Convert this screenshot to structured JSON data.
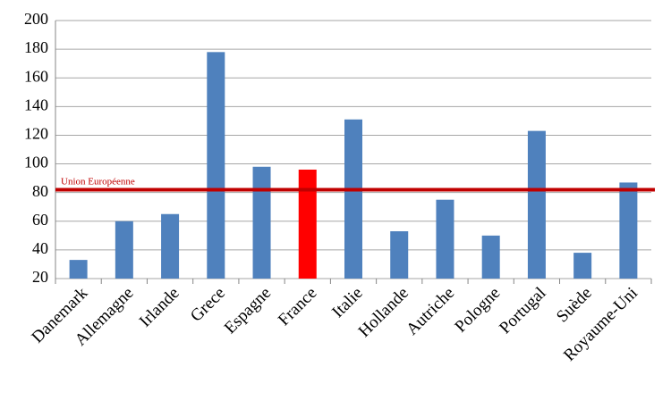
{
  "chart_data": {
    "type": "bar",
    "categories": [
      "Danemark",
      "Allemagne",
      "Irlande",
      "Grece",
      "Espagne",
      "France",
      "Italie",
      "Hollande",
      "Autriche",
      "Pologne",
      "Portugal",
      "Suède",
      "Royaume-Uni"
    ],
    "values": [
      33,
      60,
      65,
      178,
      98,
      96,
      131,
      53,
      75,
      50,
      123,
      38,
      87
    ],
    "colors": [
      "#4f81bd",
      "#4f81bd",
      "#4f81bd",
      "#4f81bd",
      "#4f81bd",
      "#ff0000",
      "#4f81bd",
      "#4f81bd",
      "#4f81bd",
      "#4f81bd",
      "#4f81bd",
      "#4f81bd",
      "#4f81bd"
    ],
    "ylim": [
      20,
      200
    ],
    "yticks": [
      20,
      40,
      60,
      80,
      100,
      120,
      140,
      160,
      180,
      200
    ],
    "grid": true,
    "reference_line": {
      "value": 82,
      "label": "Union Européenne",
      "color": "#c00000"
    }
  }
}
